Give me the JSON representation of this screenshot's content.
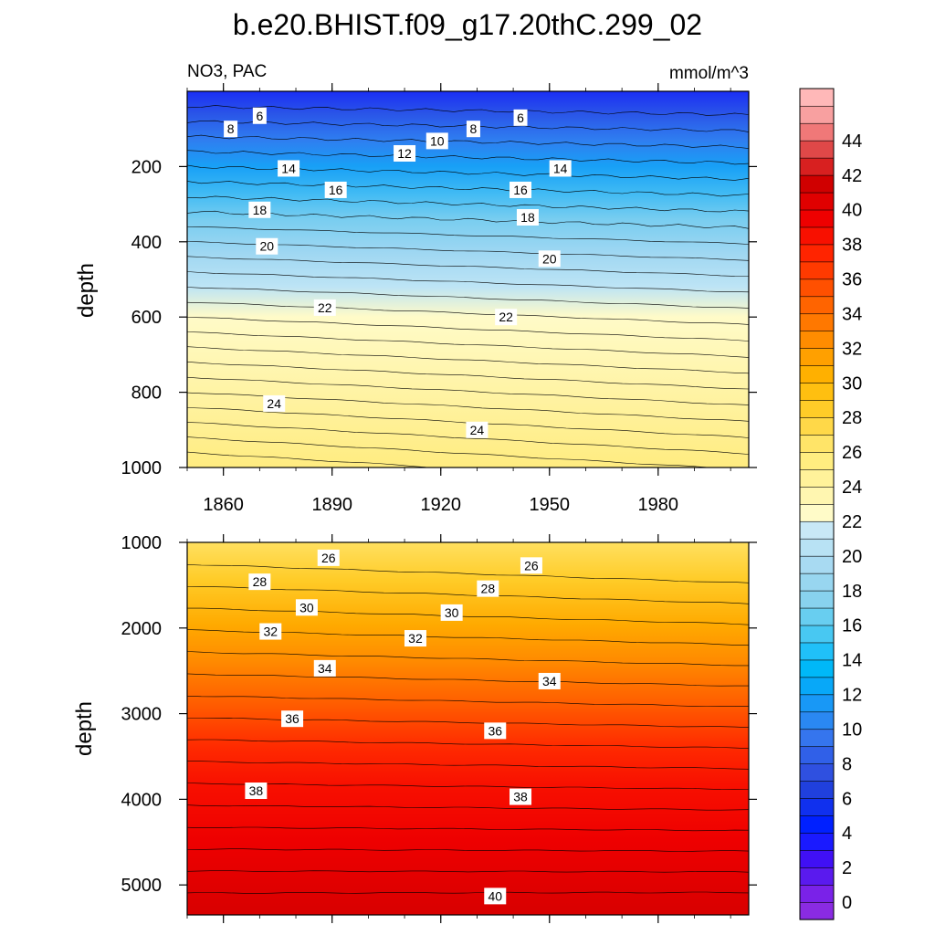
{
  "title": "b.e20.BHIST.f09_g17.20thC.299_02",
  "left_label": "NO3, PAC",
  "right_label": "mmol/m^3",
  "ylabel": "depth",
  "chart_data": [
    {
      "type": "heatmap",
      "panel": "upper",
      "ylabel": "depth",
      "x_range": [
        1850,
        2005
      ],
      "y_range": [
        0,
        1000
      ],
      "y_inverted": true,
      "x_ticks": [
        1860,
        1890,
        1920,
        1950,
        1980
      ],
      "y_ticks": [
        200,
        400,
        600,
        800,
        1000
      ],
      "contour_labels": [
        {
          "x": 1870,
          "y": 65,
          "text": "6"
        },
        {
          "x": 1862,
          "y": 100,
          "text": "8"
        },
        {
          "x": 1942,
          "y": 70,
          "text": "6"
        },
        {
          "x": 1929,
          "y": 100,
          "text": "8"
        },
        {
          "x": 1919,
          "y": 132,
          "text": "10"
        },
        {
          "x": 1910,
          "y": 165,
          "text": "12"
        },
        {
          "x": 1878,
          "y": 205,
          "text": "14"
        },
        {
          "x": 1953,
          "y": 205,
          "text": "14"
        },
        {
          "x": 1891,
          "y": 262,
          "text": "16"
        },
        {
          "x": 1942,
          "y": 262,
          "text": "16"
        },
        {
          "x": 1870,
          "y": 315,
          "text": "18"
        },
        {
          "x": 1944,
          "y": 335,
          "text": "18"
        },
        {
          "x": 1872,
          "y": 412,
          "text": "20"
        },
        {
          "x": 1950,
          "y": 445,
          "text": "20"
        },
        {
          "x": 1888,
          "y": 575,
          "text": "22"
        },
        {
          "x": 1938,
          "y": 600,
          "text": "22"
        },
        {
          "x": 1874,
          "y": 830,
          "text": "24"
        },
        {
          "x": 1930,
          "y": 900,
          "text": "24"
        }
      ]
    },
    {
      "type": "heatmap",
      "panel": "lower",
      "ylabel": "depth",
      "x_range": [
        1850,
        2005
      ],
      "y_range": [
        1000,
        5350
      ],
      "y_inverted": true,
      "x_ticks": [
        1860,
        1890,
        1920,
        1950,
        1980
      ],
      "y_ticks": [
        1000,
        2000,
        3000,
        4000,
        5000
      ],
      "contour_labels": [
        {
          "x": 1889,
          "y": 1180,
          "text": "26"
        },
        {
          "x": 1945,
          "y": 1270,
          "text": "26"
        },
        {
          "x": 1870,
          "y": 1460,
          "text": "28"
        },
        {
          "x": 1933,
          "y": 1540,
          "text": "28"
        },
        {
          "x": 1883,
          "y": 1760,
          "text": "30"
        },
        {
          "x": 1923,
          "y": 1820,
          "text": "30"
        },
        {
          "x": 1873,
          "y": 2040,
          "text": "32"
        },
        {
          "x": 1913,
          "y": 2120,
          "text": "32"
        },
        {
          "x": 1888,
          "y": 2470,
          "text": "34"
        },
        {
          "x": 1950,
          "y": 2620,
          "text": "34"
        },
        {
          "x": 1879,
          "y": 3060,
          "text": "36"
        },
        {
          "x": 1935,
          "y": 3200,
          "text": "36"
        },
        {
          "x": 1869,
          "y": 3900,
          "text": "38"
        },
        {
          "x": 1942,
          "y": 3970,
          "text": "38"
        },
        {
          "x": 1935,
          "y": 5130,
          "text": "40"
        }
      ]
    }
  ],
  "colorbar": {
    "tick_labels": [
      "0",
      "2",
      "4",
      "6",
      "8",
      "10",
      "12",
      "14",
      "16",
      "18",
      "20",
      "22",
      "24",
      "26",
      "28",
      "30",
      "32",
      "34",
      "36",
      "38",
      "40",
      "42",
      "44"
    ],
    "colors": [
      "#8a2be2",
      "#7a22e8",
      "#5a1aee",
      "#4010f5",
      "#1a1aff",
      "#0020ff",
      "#1030ee",
      "#2040dd",
      "#2f50e0",
      "#3060e8",
      "#3575ee",
      "#2a88f2",
      "#1898f6",
      "#08a8f8",
      "#00b8f8",
      "#20c0f8",
      "#48c8f2",
      "#68cef0",
      "#88d2ee",
      "#98d6f0",
      "#a8daf2",
      "#b8e2f4",
      "#c8e8f6",
      "#fffbc8",
      "#fff6b0",
      "#fff29a",
      "#ffed80",
      "#ffe468",
      "#ffd848",
      "#ffcc28",
      "#ffbf10",
      "#ffb000",
      "#ffa000",
      "#ff8c00",
      "#ff7800",
      "#ff6400",
      "#ff5000",
      "#ff3a00",
      "#ff2400",
      "#f81000",
      "#ee0000",
      "#e00000",
      "#d00000",
      "#d82020",
      "#e04848",
      "#f07878",
      "#f8a0a0",
      "#ffb8b8"
    ]
  }
}
